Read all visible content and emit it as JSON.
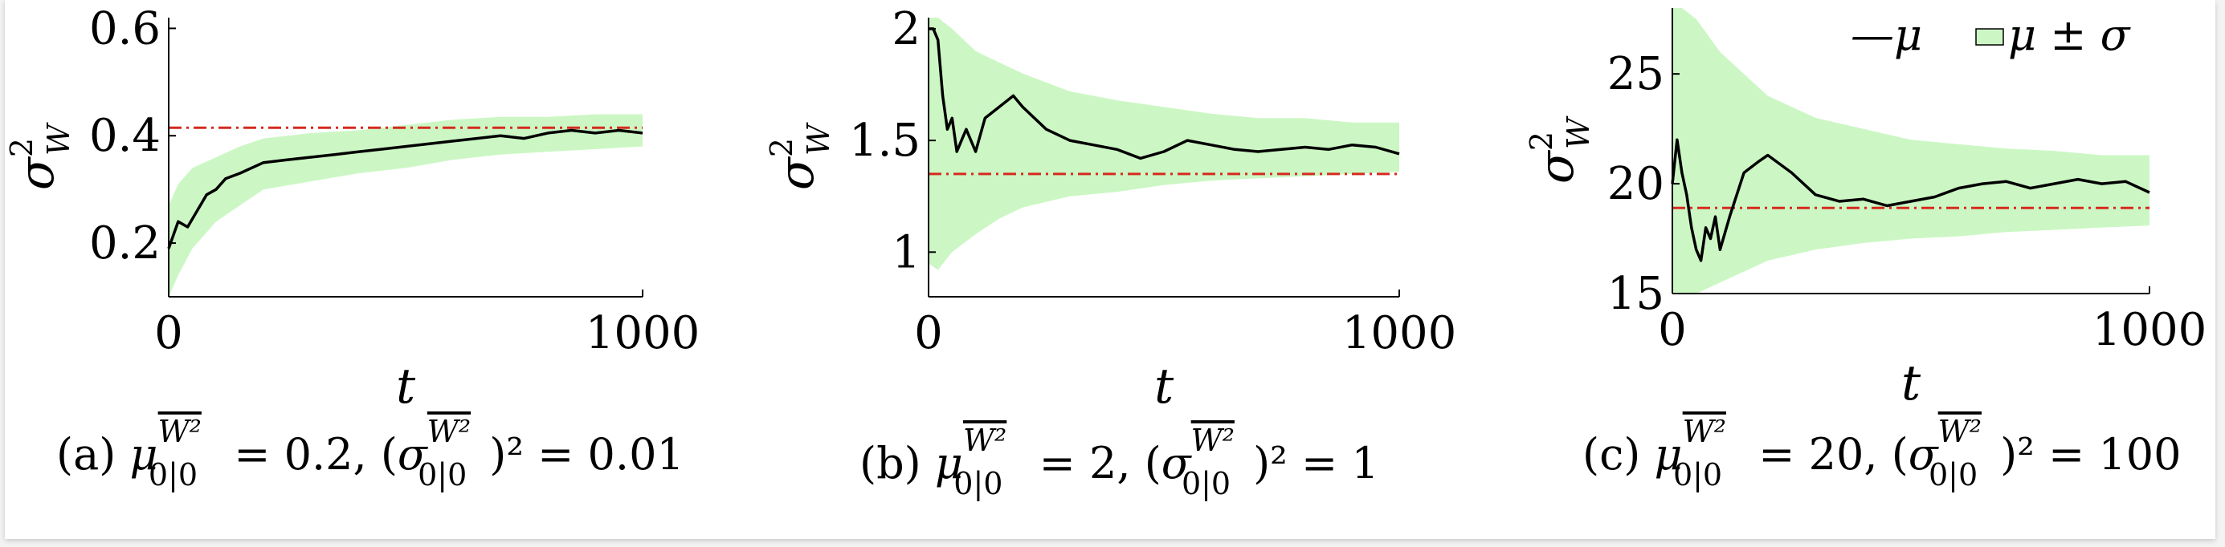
{
  "colors": {
    "mean_line": "#000000",
    "band_fill": "#ccf7c4",
    "reference_line": "#d62a1e",
    "axis": "#000000"
  },
  "legend": {
    "mean_label": "—μ",
    "band_label": "μ ± σ",
    "placement": "top-right of panel (c)"
  },
  "chart_data": [
    {
      "type": "line",
      "panel": "(a)",
      "caption": "(a) μ_{0|0}^{W²} = 0.2, (σ_{0|0}^{W²})² = 0.01",
      "caption_parts": {
        "tag": "(a) ",
        "mu": "μ",
        "sup": "W²",
        "sub": "0|0",
        "eq1": " = 0.2, (",
        "sigma": "σ",
        "eq2": ")² = 0.01"
      },
      "xlabel": "t",
      "ylabel": "σ²_W",
      "ylabel_parts": {
        "base": "σ",
        "sup": "2",
        "sub": "W"
      },
      "xlim": [
        0,
        1000
      ],
      "ylim": [
        0.1,
        0.62
      ],
      "xticks": [
        0,
        1000
      ],
      "yticks": [
        0.2,
        0.4,
        0.6
      ],
      "xtick_labels": [
        "0",
        "1000"
      ],
      "ytick_labels": [
        "0.2",
        "0.4",
        "0.6"
      ],
      "reference_value": 0.415,
      "grid": false,
      "series": [
        {
          "kind": "mean",
          "x": [
            0,
            20,
            40,
            60,
            80,
            100,
            120,
            150,
            200,
            250,
            300,
            350,
            400,
            450,
            500,
            550,
            600,
            650,
            700,
            750,
            800,
            850,
            900,
            950,
            1000
          ],
          "y": [
            0.19,
            0.24,
            0.23,
            0.26,
            0.29,
            0.3,
            0.32,
            0.33,
            0.35,
            0.355,
            0.36,
            0.365,
            0.37,
            0.375,
            0.38,
            0.385,
            0.39,
            0.395,
            0.4,
            0.395,
            0.405,
            0.41,
            0.405,
            0.41,
            0.405
          ]
        },
        {
          "kind": "band",
          "x": [
            0,
            20,
            50,
            100,
            150,
            200,
            300,
            400,
            500,
            600,
            700,
            800,
            900,
            1000
          ],
          "lower": [
            0.1,
            0.14,
            0.19,
            0.24,
            0.27,
            0.3,
            0.315,
            0.33,
            0.34,
            0.355,
            0.365,
            0.37,
            0.375,
            0.38
          ],
          "upper": [
            0.27,
            0.31,
            0.34,
            0.36,
            0.38,
            0.395,
            0.405,
            0.41,
            0.42,
            0.43,
            0.435,
            0.435,
            0.44,
            0.44
          ]
        }
      ]
    },
    {
      "type": "line",
      "panel": "(b)",
      "caption": "(b) μ_{0|0}^{W²} = 2, (σ_{0|0}^{W²})² = 1",
      "caption_parts": {
        "tag": "(b) ",
        "mu": "μ",
        "sup": "W²",
        "sub": "0|0",
        "eq1": " = 2, (",
        "sigma": "σ",
        "eq2": ")² = 1"
      },
      "xlabel": "t",
      "ylabel": "σ²_W",
      "ylabel_parts": {
        "base": "σ",
        "sup": "2",
        "sub": "W"
      },
      "xlim": [
        0,
        1000
      ],
      "ylim": [
        0.8,
        2.05
      ],
      "xticks": [
        0,
        1000
      ],
      "yticks": [
        1,
        1.5,
        2
      ],
      "xtick_labels": [
        "0",
        "1000"
      ],
      "ytick_labels": [
        "1",
        "1.5",
        "2"
      ],
      "reference_value": 1.35,
      "grid": false,
      "series": [
        {
          "kind": "mean",
          "x": [
            0,
            10,
            20,
            30,
            40,
            50,
            60,
            70,
            80,
            100,
            120,
            150,
            180,
            200,
            250,
            300,
            350,
            400,
            450,
            500,
            550,
            600,
            650,
            700,
            750,
            800,
            850,
            900,
            950,
            1000
          ],
          "y": [
            2.0,
            2.0,
            1.95,
            1.7,
            1.55,
            1.6,
            1.45,
            1.5,
            1.55,
            1.45,
            1.6,
            1.65,
            1.7,
            1.65,
            1.55,
            1.5,
            1.48,
            1.46,
            1.42,
            1.45,
            1.5,
            1.48,
            1.46,
            1.45,
            1.46,
            1.47,
            1.46,
            1.48,
            1.47,
            1.44
          ]
        },
        {
          "kind": "band",
          "x": [
            0,
            20,
            50,
            100,
            150,
            200,
            300,
            400,
            500,
            600,
            700,
            800,
            900,
            1000
          ],
          "lower": [
            0.95,
            0.92,
            1.0,
            1.08,
            1.15,
            1.2,
            1.25,
            1.27,
            1.3,
            1.32,
            1.33,
            1.34,
            1.35,
            1.36
          ],
          "upper": [
            2.05,
            2.05,
            2.0,
            1.9,
            1.85,
            1.8,
            1.72,
            1.68,
            1.65,
            1.62,
            1.6,
            1.6,
            1.58,
            1.58
          ]
        }
      ]
    },
    {
      "type": "line",
      "panel": "(c)",
      "caption": "(c) μ_{0|0}^{W²} = 20, (σ_{0|0}^{W²})² = 100",
      "caption_parts": {
        "tag": "(c) ",
        "mu": "μ",
        "sup": "W²",
        "sub": "0|0",
        "eq1": " = 20, (",
        "sigma": "σ",
        "eq2": ")² = 100"
      },
      "xlabel": "t",
      "ylabel": "σ²_W",
      "ylabel_parts": {
        "base": "σ",
        "sup": "2",
        "sub": "W"
      },
      "xlim": [
        0,
        1000
      ],
      "ylim": [
        15,
        28
      ],
      "xticks": [
        0,
        1000
      ],
      "yticks": [
        15,
        20,
        25
      ],
      "xtick_labels": [
        "0",
        "1000"
      ],
      "ytick_labels": [
        "15",
        "20",
        "25"
      ],
      "reference_value": 18.9,
      "grid": false,
      "series": [
        {
          "kind": "mean",
          "x": [
            0,
            10,
            20,
            30,
            40,
            50,
            60,
            70,
            80,
            90,
            100,
            120,
            150,
            180,
            200,
            250,
            300,
            350,
            400,
            450,
            500,
            550,
            600,
            650,
            700,
            750,
            800,
            850,
            900,
            950,
            1000
          ],
          "y": [
            20.0,
            22.0,
            20.5,
            19.5,
            18.0,
            17.0,
            16.5,
            18.0,
            17.5,
            18.5,
            17.0,
            18.5,
            20.5,
            21.0,
            21.3,
            20.5,
            19.5,
            19.2,
            19.3,
            19.0,
            19.2,
            19.4,
            19.8,
            20.0,
            20.1,
            19.8,
            20.0,
            20.2,
            20.0,
            20.1,
            19.6
          ]
        },
        {
          "kind": "band",
          "x": [
            0,
            20,
            50,
            100,
            150,
            200,
            300,
            400,
            500,
            600,
            700,
            800,
            900,
            1000
          ],
          "lower": [
            15.0,
            15.0,
            15.0,
            15.5,
            16.0,
            16.5,
            17.0,
            17.3,
            17.5,
            17.6,
            17.8,
            17.9,
            18.0,
            18.1
          ],
          "upper": [
            28.0,
            28.0,
            27.5,
            26.0,
            25.0,
            24.0,
            23.0,
            22.5,
            22.0,
            21.8,
            21.6,
            21.5,
            21.3,
            21.3
          ]
        }
      ]
    }
  ]
}
